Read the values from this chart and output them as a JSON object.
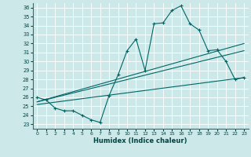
{
  "xlabel": "Humidex (Indice chaleur)",
  "bg_color": "#cce8e8",
  "grid_color": "#aacccc",
  "line_color": "#006666",
  "xlim": [
    -0.5,
    23.5
  ],
  "ylim": [
    22.5,
    36.5
  ],
  "xticks": [
    0,
    1,
    2,
    3,
    4,
    5,
    6,
    7,
    8,
    9,
    10,
    11,
    12,
    13,
    14,
    15,
    16,
    17,
    18,
    19,
    20,
    21,
    22,
    23
  ],
  "yticks": [
    23,
    24,
    25,
    26,
    27,
    28,
    29,
    30,
    31,
    32,
    33,
    34,
    35,
    36
  ],
  "curve1_x": [
    0,
    1,
    2,
    3,
    4,
    5,
    6,
    7,
    8,
    9,
    10,
    11,
    12,
    13,
    14,
    15,
    16,
    17,
    18,
    19,
    20,
    21,
    22,
    23
  ],
  "curve1_y": [
    26.0,
    25.7,
    24.8,
    24.5,
    24.5,
    24.0,
    23.5,
    23.2,
    26.2,
    28.5,
    31.2,
    32.5,
    29.0,
    34.2,
    34.3,
    35.7,
    36.2,
    34.2,
    33.5,
    31.2,
    31.3,
    30.0,
    28.0,
    28.2
  ],
  "line2_x": [
    0,
    23
  ],
  "line2_y": [
    25.5,
    32.0
  ],
  "line3_x": [
    0,
    23
  ],
  "line3_y": [
    25.5,
    31.2
  ],
  "line4_x": [
    0,
    23
  ],
  "line4_y": [
    25.2,
    28.2
  ]
}
